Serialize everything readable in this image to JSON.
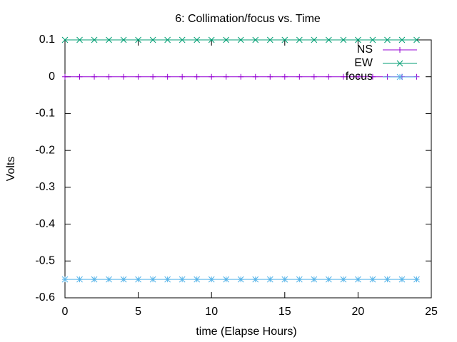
{
  "chart_data": {
    "type": "line",
    "title": "6: Collimation/focus vs. Time",
    "x_label": "time (Elapse Hours)",
    "y_label": "Volts",
    "x": [
      0,
      1,
      2,
      3,
      4,
      5,
      6,
      7,
      8,
      9,
      10,
      11,
      12,
      13,
      14,
      15,
      16,
      17,
      18,
      19,
      20,
      21,
      22,
      23,
      24
    ],
    "series": [
      {
        "name": "NS",
        "color": "#9400d3",
        "marker": "plus",
        "values": [
          0,
          0,
          0,
          0,
          0,
          0,
          0,
          0,
          0,
          0,
          0,
          0,
          0,
          0,
          0,
          0,
          0,
          0,
          0,
          0,
          0,
          0,
          0,
          0,
          0
        ]
      },
      {
        "name": "EW",
        "color": "#009e73",
        "marker": "cross",
        "values": [
          0.1,
          0.1,
          0.1,
          0.1,
          0.1,
          0.1,
          0.1,
          0.1,
          0.1,
          0.1,
          0.1,
          0.1,
          0.1,
          0.1,
          0.1,
          0.1,
          0.1,
          0.1,
          0.1,
          0.1,
          0.1,
          0.1,
          0.1,
          0.1,
          0.1
        ]
      },
      {
        "name": "focus",
        "color": "#56b4e9",
        "marker": "star",
        "values": [
          -0.55,
          -0.55,
          -0.55,
          -0.55,
          -0.55,
          -0.55,
          -0.55,
          -0.55,
          -0.55,
          -0.55,
          -0.55,
          -0.55,
          -0.55,
          -0.55,
          -0.55,
          -0.55,
          -0.55,
          -0.55,
          -0.55,
          -0.55,
          -0.55,
          -0.55,
          -0.55,
          -0.55,
          -0.55
        ]
      }
    ],
    "xlim": [
      0,
      25
    ],
    "xticks": [
      0,
      5,
      10,
      15,
      20,
      25
    ],
    "ylim": [
      -0.6,
      0.1
    ],
    "yticks": [
      0.1,
      0,
      -0.1,
      -0.2,
      -0.3,
      -0.4,
      -0.5,
      -0.6
    ],
    "grid": false,
    "legend": "top-right"
  }
}
